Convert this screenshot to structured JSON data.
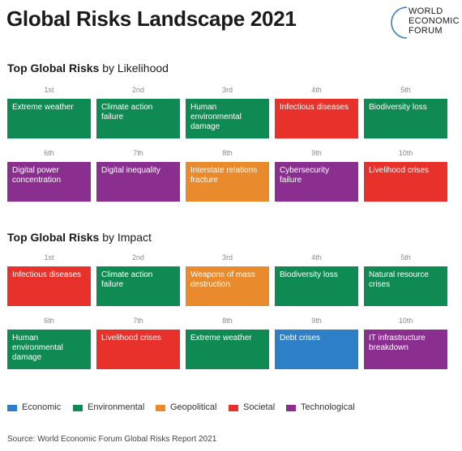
{
  "title": "Global Risks Landscape 2021",
  "logo": {
    "lines": [
      "WORLD",
      "ECONOMIC",
      "FORUM"
    ]
  },
  "colors": {
    "Economic": "#2d7fc7",
    "Environmental": "#0f8a52",
    "Geopolitical": "#e98a2c",
    "Societal": "#e8312a",
    "Technological": "#8a2f8f"
  },
  "likelihood": {
    "heading_bold": "Top Global Risks",
    "heading_rest": " by Likelihood",
    "items": [
      {
        "rank": "1st",
        "label": "Extreme weather",
        "category": "Environmental"
      },
      {
        "rank": "2nd",
        "label": "Climate action failure",
        "category": "Environmental"
      },
      {
        "rank": "3rd",
        "label": "Human environmental damage",
        "category": "Environmental"
      },
      {
        "rank": "4th",
        "label": "Infectious diseases",
        "category": "Societal"
      },
      {
        "rank": "5th",
        "label": "Biodiversity loss",
        "category": "Environmental"
      },
      {
        "rank": "6th",
        "label": "Digital power concentration",
        "category": "Technological"
      },
      {
        "rank": "7th",
        "label": "Digital inequality",
        "category": "Technological"
      },
      {
        "rank": "8th",
        "label": "Interstate relations fracture",
        "category": "Geopolitical"
      },
      {
        "rank": "9th",
        "label": "Cybersecurity failure",
        "category": "Technological"
      },
      {
        "rank": "10th",
        "label": "Livelihood crises",
        "category": "Societal"
      }
    ]
  },
  "impact": {
    "heading_bold": "Top Global Risks",
    "heading_rest": " by Impact",
    "items": [
      {
        "rank": "1st",
        "label": "Infectious diseases",
        "category": "Societal"
      },
      {
        "rank": "2nd",
        "label": "Climate action failure",
        "category": "Environmental"
      },
      {
        "rank": "3rd",
        "label": "Weapons of mass destruction",
        "category": "Geopolitical"
      },
      {
        "rank": "4th",
        "label": "Biodiversity loss",
        "category": "Environmental"
      },
      {
        "rank": "5th",
        "label": "Natural resource crises",
        "category": "Environmental"
      },
      {
        "rank": "6th",
        "label": "Human environmental damage",
        "category": "Environmental"
      },
      {
        "rank": "7th",
        "label": "Livelihood crises",
        "category": "Societal"
      },
      {
        "rank": "8th",
        "label": "Extreme weather",
        "category": "Environmental"
      },
      {
        "rank": "9th",
        "label": "Debt crises",
        "category": "Economic"
      },
      {
        "rank": "10th",
        "label": "IT infrastructure breakdown",
        "category": "Technological"
      }
    ]
  },
  "legend": [
    "Economic",
    "Environmental",
    "Geopolitical",
    "Societal",
    "Technological"
  ],
  "source": "Source: World Economic Forum Global Risks Report 2021"
}
